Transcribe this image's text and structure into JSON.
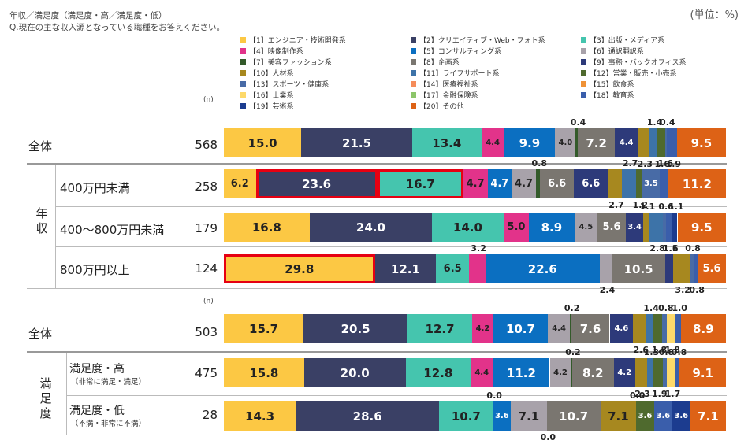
{
  "header": {
    "title": "年収／満足度（満足度・高／満足度・低）",
    "question": "Q.現在の主な収入源となっている職種をお答えください。",
    "unit": "(単位：%)"
  },
  "n_label": "(n)",
  "colors": [
    "#fcc844",
    "#3a4065",
    "#45c5ae",
    "#e2338a",
    "#0b6fc1",
    "#a8a2aa",
    "#335a2a",
    "#7a7670",
    "#2d3a7a",
    "#a7881f",
    "#3d73a8",
    "#4f6a2e",
    "#486ba6",
    "#f58c5a",
    "#ef9236",
    "#fdd96a",
    "#8cc56a",
    "#3a5eab",
    "#1c3c8f",
    "#dd6216"
  ],
  "legend": [
    "【1】エンジニア・技術開発系",
    "【2】クリエイティブ・Web・フォト系",
    "【3】出版・メディア系",
    "【4】映像制作系",
    "【5】コンサルティング系",
    "【6】通訳翻訳系",
    "【7】美容ファッション系",
    "【8】企画系",
    "【9】事務・バックオフィス系",
    "【10】人材系",
    "【11】ライフサポート系",
    "【12】営業・販売・小売系",
    "【13】スポーツ・健康系",
    "【14】医療福祉系",
    "【15】飲食系",
    "【16】士業系",
    "【17】金融保険系",
    "【18】教育系",
    "【19】芸術系",
    "【20】その他"
  ],
  "group_labels": {
    "income": "年収",
    "satisfaction": "満足度"
  },
  "chart_data": [
    {
      "type": "bar",
      "stacked": true,
      "orientation": "horizontal",
      "unit": "%",
      "series_names": "legend",
      "rows": [
        {
          "label": "全体",
          "n": "568",
          "values": [
            15.0,
            21.5,
            13.4,
            4.4,
            9.9,
            4.0,
            0.4,
            7.2,
            4.4,
            2.3,
            1.4,
            1.6,
            0.4,
            1.9,
            9.5
          ],
          "display": [
            "15.0",
            "21.5",
            "13.4",
            "4.4",
            "9.9",
            "4.0",
            "0.4",
            "7.2",
            "4.4",
            "2.3",
            "1.4",
            "1.6",
            "0.4",
            "1.9",
            "9.5"
          ]
        },
        {
          "label": "400万円未満",
          "n": "258",
          "values": [
            6.2,
            23.6,
            16.7,
            4.7,
            4.7,
            4.7,
            0.8,
            6.6,
            6.6,
            2.7,
            2.7,
            1.2,
            3.5,
            1.6,
            11.2
          ],
          "display": [
            "6.2",
            "23.6",
            "16.7",
            "4.7",
            "4.7",
            "4.7",
            "0.8",
            "6.6",
            "6.6",
            "2.7",
            "2.7",
            "1.2",
            "3.5",
            "1.6",
            "11.2"
          ],
          "highlight": [
            1,
            2
          ]
        },
        {
          "label": "400〜800万円未満",
          "n": "179",
          "values": [
            16.8,
            24.0,
            14.0,
            5.0,
            8.9,
            4.5,
            5.6,
            3.4,
            1.1,
            2.8,
            0.6,
            1.1,
            1.1,
            9.5
          ],
          "display": [
            "16.8",
            "24.0",
            "14.0",
            "5.0",
            "8.9",
            "4.5",
            "5.6",
            "3.4",
            "1.1",
            "2.8",
            "0.6",
            "1.1",
            "1.1",
            "9.5"
          ]
        },
        {
          "label": "800万円以上",
          "n": "124",
          "values": [
            29.8,
            12.1,
            6.5,
            3.2,
            22.6,
            2.4,
            10.5,
            1.6,
            3.2,
            0.8,
            0.8,
            5.6
          ],
          "display": [
            "29.8",
            "12.1",
            "6.5",
            "3.2",
            "22.6",
            "2.4",
            "10.5",
            "1.6",
            "3.2",
            "0.8",
            "0.8",
            "5.6"
          ],
          "highlight": [
            0
          ]
        },
        {
          "label": "全体",
          "n": "503",
          "values": [
            15.7,
            20.5,
            12.7,
            4.2,
            10.7,
            4.4,
            0.2,
            7.6,
            4.6,
            2.6,
            1.4,
            1.8,
            0.8,
            1.8,
            1.0,
            8.9
          ],
          "display": [
            "15.7",
            "20.5",
            "12.7",
            "4.2",
            "10.7",
            "4.4",
            "0.2",
            "7.6",
            "4.6",
            "2.6",
            "1.4",
            "1.8",
            "0.8",
            "1.8",
            "1.0",
            "8.9"
          ]
        },
        {
          "label": "満足度・高",
          "sublabel": "（非常に満足・満足）",
          "n": "475",
          "values": [
            15.8,
            20.0,
            12.8,
            4.4,
            11.2,
            4.2,
            0.2,
            8.2,
            4.2,
            2.3,
            1.3,
            1.9,
            0.8,
            1.7,
            0.8,
            9.1
          ],
          "display": [
            "15.8",
            "20.0",
            "12.8",
            "4.4",
            "11.2",
            "4.2",
            "0.2",
            "8.2",
            "4.2",
            "2.3",
            "1.3",
            "1.9",
            "0.8",
            "1.7",
            "0.8",
            "9.1"
          ]
        },
        {
          "label": "満足度・低",
          "sublabel": "（不満・非常に不満）",
          "n": "28",
          "values": [
            14.3,
            28.6,
            10.7,
            0.0,
            3.6,
            7.1,
            0.0,
            10.7,
            7.1,
            0.0,
            3.6,
            3.6,
            3.6,
            7.1
          ],
          "display": [
            "14.3",
            "28.6",
            "10.7",
            "0.0",
            "3.6",
            "7.1",
            "0.0",
            "10.7",
            "7.1",
            "0.0",
            "3.6",
            "3.6",
            "3.6",
            "7.1"
          ]
        }
      ]
    }
  ]
}
